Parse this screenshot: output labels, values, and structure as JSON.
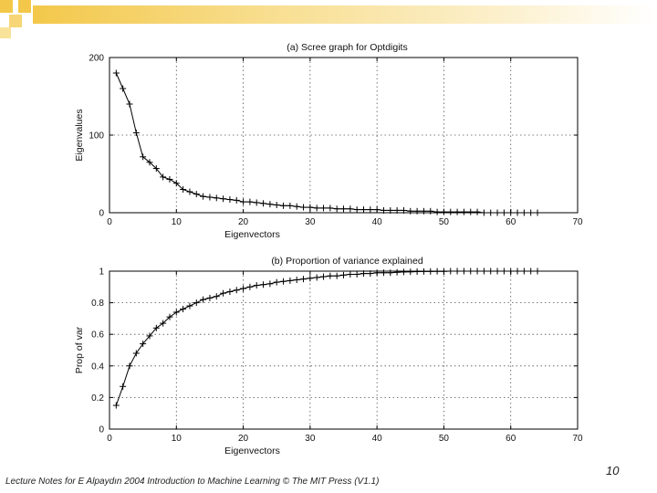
{
  "colors": {
    "accent": "#f3c84a",
    "accent_light": "#f9e39a",
    "line": "#000000",
    "grid": "#555555"
  },
  "footer": {
    "text": "Lecture Notes for E Alpaydın 2004 Introduction to Machine Learning © The MIT Press (V1.1)",
    "page_number": "10"
  },
  "chart_data": [
    {
      "type": "line",
      "title": "(a) Scree graph for Optdigits",
      "xlabel": "Eigenvectors",
      "ylabel": "Eigenvalues",
      "xlim": [
        0,
        70
      ],
      "ylim": [
        0,
        200
      ],
      "xticks": [
        0,
        10,
        20,
        30,
        40,
        50,
        60,
        70
      ],
      "yticks": [
        0,
        100,
        200
      ],
      "grid": true,
      "marker": "+",
      "x": [
        1,
        2,
        3,
        4,
        5,
        6,
        7,
        8,
        9,
        10,
        11,
        12,
        13,
        14,
        15,
        16,
        17,
        18,
        19,
        20,
        21,
        22,
        23,
        24,
        25,
        26,
        27,
        28,
        29,
        30,
        31,
        32,
        33,
        34,
        35,
        36,
        37,
        38,
        39,
        40,
        41,
        42,
        43,
        44,
        45,
        46,
        47,
        48,
        49,
        50,
        51,
        52,
        53,
        54,
        55,
        56,
        57,
        58,
        59,
        60,
        61,
        62,
        63,
        64
      ],
      "y": [
        180,
        160,
        140,
        103,
        72,
        65,
        57,
        46,
        43,
        38,
        30,
        27,
        24,
        21,
        20,
        19,
        18,
        17,
        16,
        14,
        14,
        13,
        12,
        11,
        10,
        9,
        9,
        8,
        7,
        7,
        6,
        6,
        6,
        5,
        5,
        5,
        4,
        4,
        4,
        4,
        3,
        3,
        3,
        3,
        2,
        2,
        2,
        2,
        1,
        1,
        1,
        1,
        1,
        1,
        1,
        0,
        0,
        0,
        0,
        0,
        0,
        0,
        0,
        0
      ]
    },
    {
      "type": "line",
      "title": "(b) Proportion of variance explained",
      "xlabel": "Eigenvectors",
      "ylabel": "Prop of var",
      "xlim": [
        0,
        70
      ],
      "ylim": [
        0,
        1
      ],
      "xticks": [
        0,
        10,
        20,
        30,
        40,
        50,
        60,
        70
      ],
      "yticks": [
        0,
        0.2,
        0.4,
        0.6,
        0.8,
        1
      ],
      "grid": true,
      "marker": "+",
      "x": [
        1,
        2,
        3,
        4,
        5,
        6,
        7,
        8,
        9,
        10,
        11,
        12,
        13,
        14,
        15,
        16,
        17,
        18,
        19,
        20,
        21,
        22,
        23,
        24,
        25,
        26,
        27,
        28,
        29,
        30,
        31,
        32,
        33,
        34,
        35,
        36,
        37,
        38,
        39,
        40,
        41,
        42,
        43,
        44,
        45,
        46,
        47,
        48,
        49,
        50,
        51,
        52,
        53,
        54,
        55,
        56,
        57,
        58,
        59,
        60,
        61,
        62,
        63,
        64
      ],
      "y": [
        0.15,
        0.27,
        0.4,
        0.48,
        0.54,
        0.59,
        0.64,
        0.67,
        0.71,
        0.74,
        0.76,
        0.78,
        0.8,
        0.82,
        0.83,
        0.84,
        0.86,
        0.87,
        0.88,
        0.89,
        0.9,
        0.91,
        0.915,
        0.92,
        0.93,
        0.935,
        0.94,
        0.945,
        0.95,
        0.955,
        0.96,
        0.965,
        0.97,
        0.97,
        0.975,
        0.98,
        0.98,
        0.985,
        0.985,
        0.99,
        0.99,
        0.99,
        0.993,
        0.995,
        0.996,
        0.997,
        0.998,
        0.998,
        0.999,
        0.999,
        1,
        1,
        1,
        1,
        1,
        1,
        1,
        1,
        1,
        1,
        1,
        1,
        1,
        1
      ]
    }
  ]
}
